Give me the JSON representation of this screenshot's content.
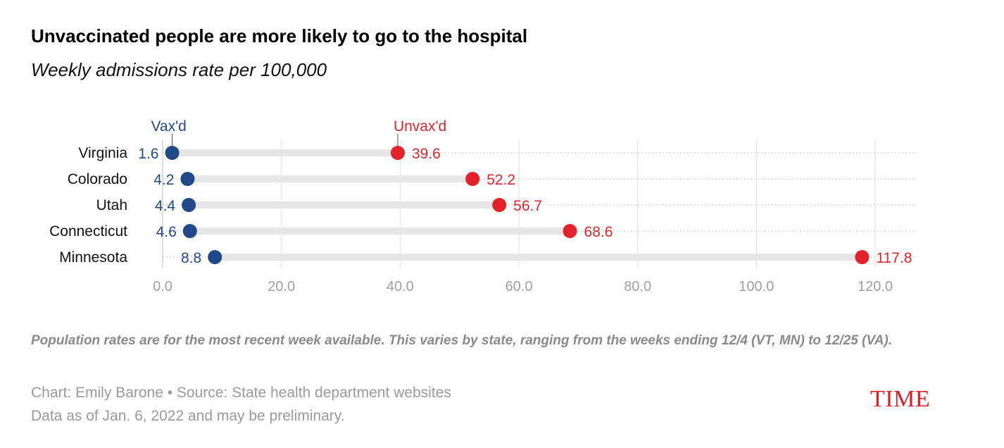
{
  "title": "Unvaccinated people are more likely to go to the hospital",
  "subtitle": "Weekly admissions rate per 100,000",
  "chart_data": {
    "type": "dot-range",
    "categories": [
      "Virginia",
      "Colorado",
      "Utah",
      "Connecticut",
      "Minnesota"
    ],
    "series": [
      {
        "name": "Vax'd",
        "values": [
          1.6,
          4.2,
          4.4,
          4.6,
          8.8
        ],
        "labels": [
          "1.6",
          "4.2",
          "4.4",
          "4.6",
          "8.8"
        ],
        "color": "#1f4a87"
      },
      {
        "name": "Unvax'd",
        "values": [
          39.6,
          52.2,
          56.7,
          68.6,
          117.8
        ],
        "labels": [
          "39.6",
          "52.2",
          "56.7",
          "68.6",
          "117.8"
        ],
        "color": "#e3232b"
      }
    ],
    "xlim": [
      0,
      120
    ],
    "xticks": [
      0,
      20,
      40,
      60,
      80,
      100,
      120
    ],
    "xtick_labels": [
      "0.0",
      "20.0",
      "40.0",
      "60.0",
      "80.0",
      "100.0",
      "120.0"
    ],
    "grid": true
  },
  "note": "Population rates are for the most recent week available. This varies by state, ranging from the weeks ending 12/4 (VT, MN) to 12/25 (VA).",
  "credit": "Chart: Emily Barone • Source: State health department websites",
  "data_note": "Data as of Jan. 6, 2022 and may be preliminary.",
  "logo": "TIME",
  "colors": {
    "gridline": "#e3e3e3",
    "bar": "#e6e6e6",
    "axis_label": "#a0a0a0"
  }
}
